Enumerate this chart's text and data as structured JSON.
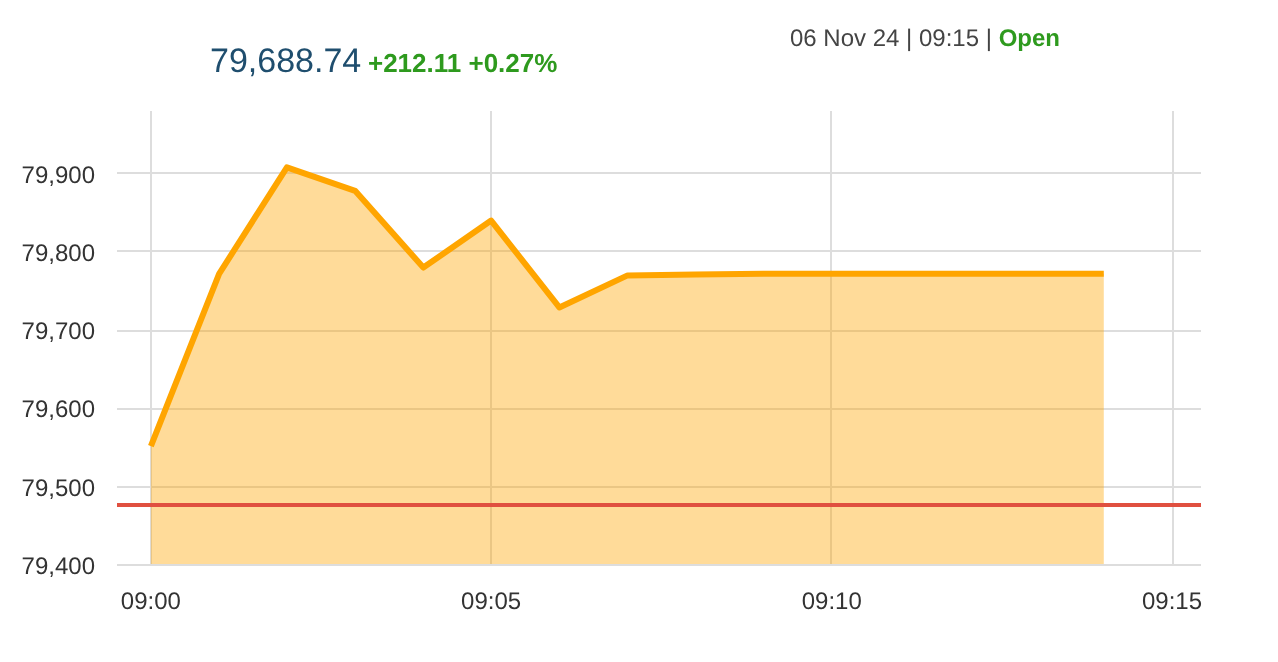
{
  "chart_data": {
    "type": "area",
    "title": "79,688.74",
    "subtitle": "+212.11 +0.27%",
    "annotations": [
      "06 Nov 24 | 09:15 |",
      "Open"
    ],
    "x": [
      9.0,
      9.0167,
      9.0333,
      9.05,
      9.0667,
      9.0833,
      9.1,
      9.1167,
      9.1333,
      9.15,
      9.1667,
      9.1833,
      9.2,
      9.2167,
      9.2333
    ],
    "series": [
      {
        "color": "#ffa500",
        "values": [
          79552,
          79772,
          79908,
          79878,
          79780,
          79840,
          79729,
          79770,
          79771,
          79772,
          79772,
          79772,
          79772,
          79772,
          79772
        ]
      }
    ],
    "xlim": [
      8.9917,
      9.2571
    ],
    "xticks": [
      {
        "value": 9.0,
        "label": "09:00"
      },
      {
        "value": 9.0833,
        "label": "09:05"
      },
      {
        "value": 9.1667,
        "label": "09:10"
      },
      {
        "value": 9.25,
        "label": "09:15"
      }
    ],
    "ylim": [
      79400,
      79980
    ],
    "yticks": [
      {
        "value": 79400,
        "label": "79,400"
      },
      {
        "value": 79500,
        "label": "79,500"
      },
      {
        "value": 79600,
        "label": "79,600"
      },
      {
        "value": 79700,
        "label": "79,700"
      },
      {
        "value": 79800,
        "label": "79,800"
      },
      {
        "value": 79900,
        "label": "79,900"
      }
    ],
    "ref_lines": [
      {
        "axis": "y",
        "value": 79476.6,
        "label": null,
        "color": "#e05040"
      }
    ],
    "grid": true
  }
}
